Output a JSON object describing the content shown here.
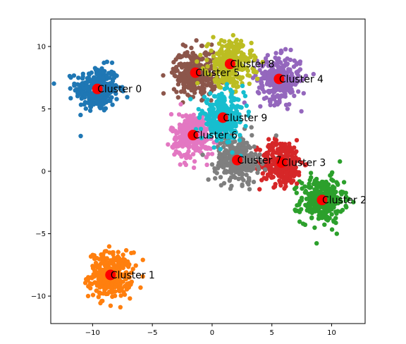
{
  "chart_data": {
    "type": "scatter",
    "title": "",
    "xlabel": "",
    "ylabel": "",
    "xlim": [
      -13.5,
      12.8
    ],
    "ylim": [
      -12.2,
      12.2
    ],
    "xticks": [
      -10,
      -5,
      0,
      5,
      10
    ],
    "yticks": [
      -10,
      -5,
      0,
      5,
      10
    ],
    "grid": false,
    "legend": "none",
    "point_spread_std": 0.9,
    "clusters": [
      {
        "label": "Cluster 0",
        "center": [
          -9.6,
          6.6
        ],
        "color": "#1f77b4",
        "n": 300
      },
      {
        "label": "Cluster 1",
        "center": [
          -8.5,
          -8.3
        ],
        "color": "#ff7f0e",
        "n": 300
      },
      {
        "label": "Cluster 2",
        "center": [
          9.2,
          -2.3
        ],
        "color": "#2ca02c",
        "n": 300
      },
      {
        "label": "Cluster 3",
        "center": [
          5.8,
          0.7
        ],
        "color": "#d62728",
        "n": 300
      },
      {
        "label": "Cluster 4",
        "center": [
          5.6,
          7.4
        ],
        "color": "#9467bd",
        "n": 300
      },
      {
        "label": "Cluster 5",
        "center": [
          -1.4,
          7.9
        ],
        "color": "#8c564b",
        "n": 300
      },
      {
        "label": "Cluster 6",
        "center": [
          -1.6,
          2.9
        ],
        "color": "#e377c2",
        "n": 300
      },
      {
        "label": "Cluster 7",
        "center": [
          2.1,
          0.9
        ],
        "color": "#7f7f7f",
        "n": 300
      },
      {
        "label": "Cluster 8",
        "center": [
          1.5,
          8.6
        ],
        "color": "#bcbd22",
        "n": 300
      },
      {
        "label": "Cluster 9",
        "center": [
          0.9,
          4.3
        ],
        "color": "#17becf",
        "n": 300
      }
    ],
    "centroid_color": "#ff0000"
  }
}
